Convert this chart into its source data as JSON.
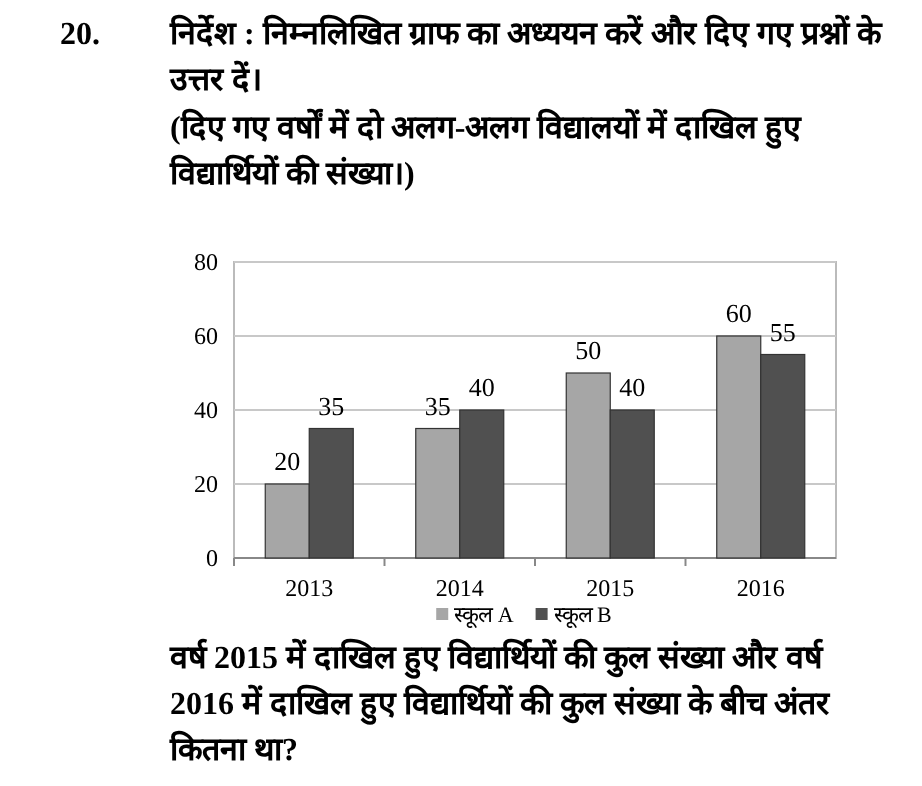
{
  "chart_data": {
    "type": "bar",
    "title": "निर्देश : निम्नलिखित ग्राफ का अध्ययन करें और दिए गए प्रश्नों के उत्तर दें।",
    "subtitle": "(दिए गए वर्षों में दो अलग-अलग विद्यालयों में दाखिल हुए विद्यार्थियों की संख्या।)",
    "categories": [
      "2013",
      "2014",
      "2015",
      "2016"
    ],
    "series": [
      {
        "name": "स्कूल A",
        "color": "#a6a6a6",
        "values": [
          20,
          35,
          50,
          60
        ]
      },
      {
        "name": "स्कूल B",
        "color": "#505050",
        "values": [
          35,
          40,
          40,
          55
        ]
      }
    ],
    "ylim": [
      0,
      80
    ],
    "yticks": [
      0,
      20,
      40,
      60,
      80
    ],
    "grid": "y",
    "legend": "bottom",
    "data_labels": true,
    "annotations": [
      "20.",
      "वर्ष 2015 में दाखिल हुए विद्यार्थियों की कुल संख्या और वर्ष 2016 में दाखिल हुए विद्यार्थियों की कुल संख्या के बीच अंतर कितना था?"
    ]
  }
}
